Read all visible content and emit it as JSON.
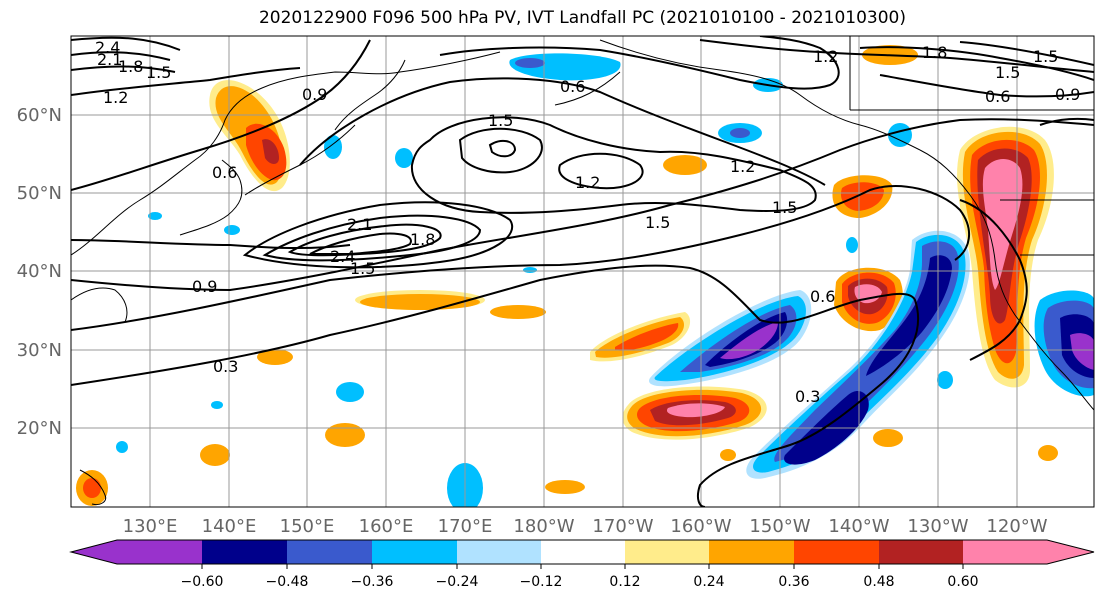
{
  "title": "2020122900 F096 500 hPa PV, IVT Landfall PC (2021010100 - 2021010300)",
  "map": {
    "lat_labels": [
      "60°N",
      "50°N",
      "40°N",
      "30°N",
      "20°N"
    ],
    "lon_labels": [
      "130°E",
      "140°E",
      "150°E",
      "160°E",
      "170°E",
      "180°W",
      "170°W",
      "160°W",
      "150°W",
      "140°W",
      "130°W",
      "120°W"
    ],
    "contour_labels": [
      "2.4",
      "2.1",
      "1.8",
      "1.5",
      "1.2",
      "0.9",
      "0.6",
      "1.5",
      "1.2",
      "1.5",
      "1.2",
      "1.5",
      "2.1",
      "2.4",
      "1.5",
      "1.8",
      "0.9",
      "0.6",
      "0.3",
      "0.3",
      "1.2",
      "1.8",
      "1.5",
      "1.5",
      "0.6",
      "0.9",
      "0.6"
    ]
  },
  "colorbar": {
    "colors": [
      "#9932cc",
      "#00008b",
      "#3a5acd",
      "#00bfff",
      "#b0e2ff",
      "#ffffff",
      "#ffec8b",
      "#ffa500",
      "#ff4500",
      "#b22222",
      "#ff82ab"
    ],
    "tick_labels": [
      "−0.60",
      "−0.48",
      "−0.36",
      "−0.24",
      "−0.12",
      "0.12",
      "0.24",
      "0.36",
      "0.48",
      "0.60"
    ]
  }
}
